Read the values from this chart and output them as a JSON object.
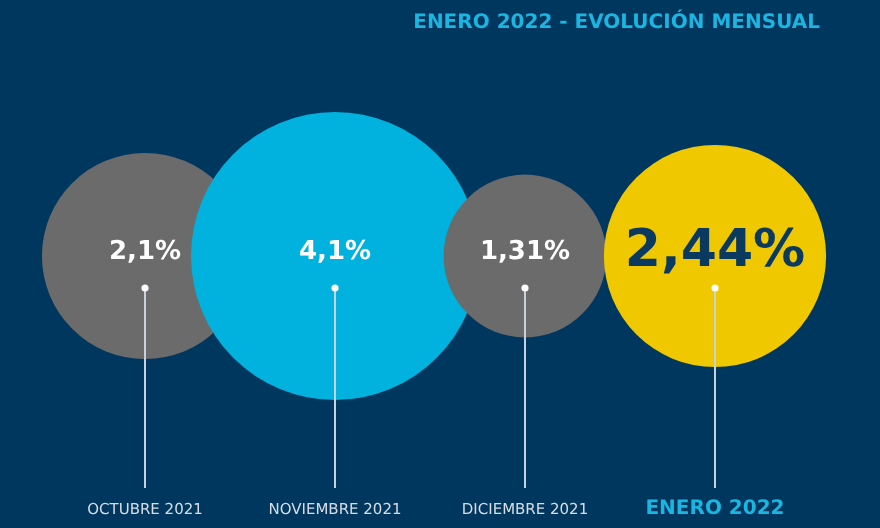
{
  "chart_data": {
    "type": "other",
    "title": "ENERO 2022 - EVOLUCIÓN MENSUAL",
    "categories": [
      "OCTUBRE 2021",
      "NOVIEMBRE 2021",
      "DICIEMBRE 2021",
      "ENERO 2022"
    ],
    "values": [
      2.1,
      4.1,
      1.31,
      2.44
    ],
    "value_labels": [
      "2,1%",
      "4,1%",
      "1,31%",
      "2,44%"
    ],
    "colors": [
      "#6b6b6b",
      "#00b2dd",
      "#6b6b6b",
      "#f0c800"
    ]
  }
}
